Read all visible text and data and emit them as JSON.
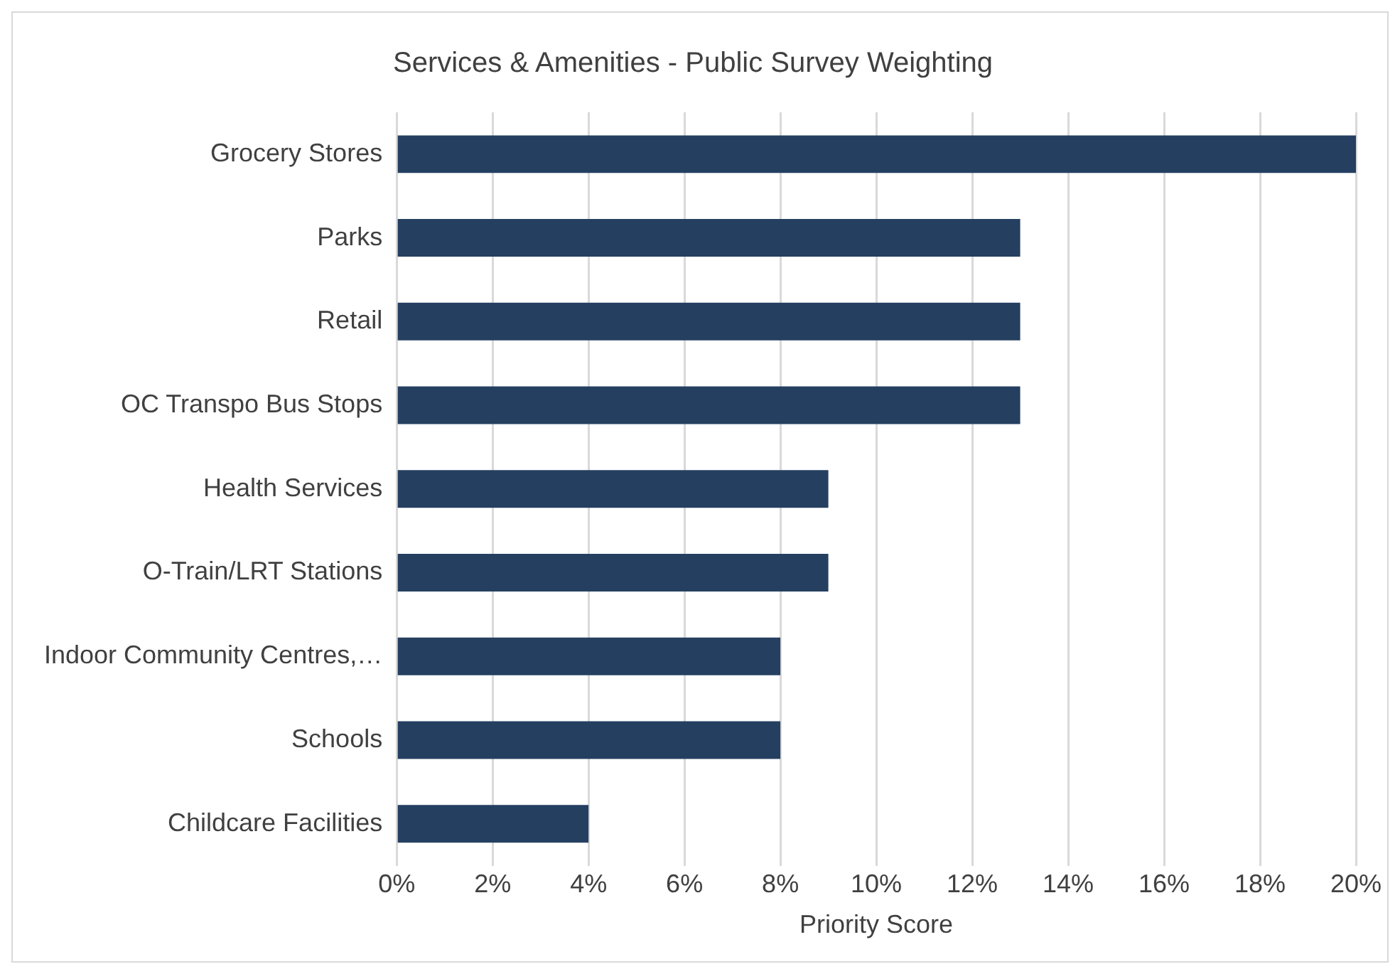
{
  "chart_data": {
    "type": "bar",
    "orientation": "horizontal",
    "title": "Services & Amenities - Public Survey Weighting",
    "xlabel": "Priority Score",
    "categories": [
      "Grocery Stores",
      "Parks",
      "Retail",
      "OC Transpo Bus Stops",
      "Health Services",
      "O-Train/LRT Stations",
      "Indoor Community Centres,…",
      "Schools",
      "Childcare Facilities"
    ],
    "values": [
      20,
      13,
      13,
      13,
      9,
      9,
      8,
      8,
      4
    ],
    "color": "#243f60",
    "xlim": [
      0,
      20
    ],
    "xticks": [
      {
        "value": 0,
        "label": "0%"
      },
      {
        "value": 2,
        "label": "2%"
      },
      {
        "value": 4,
        "label": "4%"
      },
      {
        "value": 6,
        "label": "6%"
      },
      {
        "value": 8,
        "label": "8%"
      },
      {
        "value": 10,
        "label": "10%"
      },
      {
        "value": 12,
        "label": "12%"
      },
      {
        "value": 14,
        "label": "14%"
      },
      {
        "value": 16,
        "label": "16%"
      },
      {
        "value": 18,
        "label": "18%"
      },
      {
        "value": 20,
        "label": "20%"
      }
    ],
    "grid": "x",
    "legend": false
  }
}
